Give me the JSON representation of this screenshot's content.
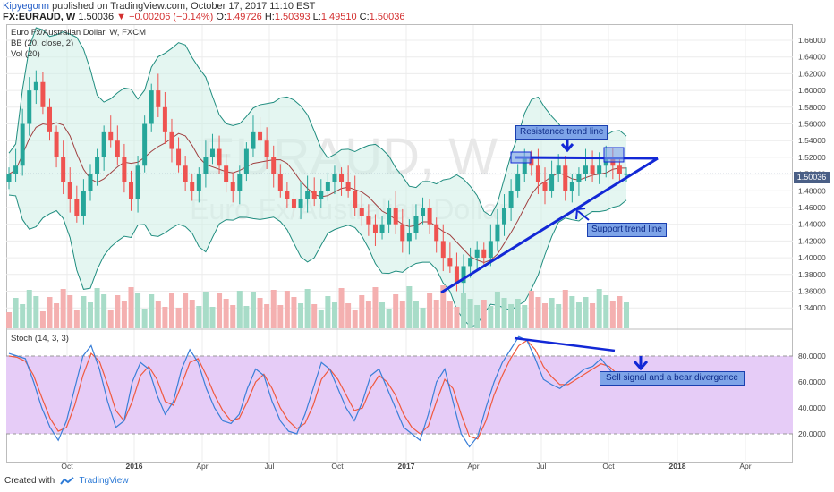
{
  "header": {
    "user": "Kipyegonn",
    "published": "published on TradingView.com, October 17, 2017 11:10 EST",
    "symbol": "FX:EURAUD, W",
    "last": "1.50036",
    "change": "−0.00206 (−0.14%)",
    "open_label": "O:",
    "open": "1.49726",
    "high_label": "H:",
    "high": "1.50393",
    "low_label": "L:",
    "low": "1.49510",
    "close_label": "C:",
    "close": "1.50036"
  },
  "legend": {
    "title": "Euro Fx/Australian Dollar, W, FXCM",
    "bb": "BB (20, close, 2)",
    "vol": "Vol (20)",
    "stoch": "Stoch (14, 3, 3)"
  },
  "watermark": {
    "symbol": "EURAUD, W",
    "name": "Euro Fx/Australian Dollar"
  },
  "price_axis": {
    "ticks": [
      "1.66000",
      "1.64000",
      "1.62000",
      "1.60000",
      "1.58000",
      "1.56000",
      "1.54000",
      "1.52000",
      "1.50000",
      "1.48000",
      "1.46000",
      "1.44000",
      "1.42000",
      "1.40000",
      "1.38000",
      "1.36000",
      "1.34000"
    ],
    "current": "1.50036"
  },
  "stoch_axis": {
    "ticks": [
      "80.0000",
      "60.0000",
      "40.0000",
      "20.0000"
    ]
  },
  "time_axis": {
    "labels": [
      "Oct",
      "2016",
      "Apr",
      "Jul",
      "Oct",
      "2017",
      "Apr",
      "Jul",
      "Oct",
      "2018",
      "Apr"
    ]
  },
  "annotations": {
    "resistance": "Resistance trend line",
    "support": "Support trend line",
    "sell": "Sell signal and a bear divergence"
  },
  "footer": {
    "created": "Created with",
    "brand": "TradingView"
  },
  "colors": {
    "up": "#26a69a",
    "down": "#ef5350",
    "bb_fill": "#cdeee6",
    "bb_line": "#1e8c7e",
    "basis": "#a04040",
    "stoch_fill": "#e6ccf7",
    "trend": "#1228d6"
  },
  "chart_data": {
    "type": "candlestick",
    "title": "Euro Fx/Australian Dollar, W, FXCM",
    "ylim": [
      1.33,
      1.67
    ],
    "close_series": [
      1.5,
      1.51,
      1.56,
      1.6,
      1.61,
      1.58,
      1.55,
      1.52,
      1.49,
      1.47,
      1.45,
      1.48,
      1.5,
      1.52,
      1.55,
      1.54,
      1.52,
      1.49,
      1.47,
      1.51,
      1.56,
      1.6,
      1.58,
      1.55,
      1.53,
      1.51,
      1.49,
      1.48,
      1.5,
      1.52,
      1.53,
      1.51,
      1.49,
      1.48,
      1.5,
      1.53,
      1.55,
      1.54,
      1.52,
      1.5,
      1.48,
      1.47,
      1.46,
      1.47,
      1.48,
      1.47,
      1.48,
      1.49,
      1.5,
      1.49,
      1.48,
      1.46,
      1.45,
      1.44,
      1.43,
      1.44,
      1.46,
      1.44,
      1.42,
      1.43,
      1.45,
      1.46,
      1.44,
      1.42,
      1.4,
      1.39,
      1.37,
      1.39,
      1.4,
      1.41,
      1.4,
      1.42,
      1.44,
      1.46,
      1.48,
      1.5,
      1.52,
      1.51,
      1.49,
      1.48,
      1.5,
      1.51,
      1.48,
      1.49,
      1.5,
      1.51,
      1.5,
      1.51,
      1.52,
      1.51,
      1.5,
      1.5
    ],
    "stoch_k": [
      82,
      80,
      78,
      60,
      40,
      25,
      15,
      30,
      55,
      80,
      88,
      70,
      45,
      25,
      30,
      60,
      75,
      70,
      50,
      35,
      45,
      70,
      85,
      75,
      55,
      40,
      30,
      28,
      35,
      55,
      70,
      65,
      45,
      30,
      22,
      20,
      35,
      55,
      75,
      70,
      55,
      40,
      30,
      45,
      65,
      70,
      55,
      40,
      25,
      20,
      15,
      35,
      60,
      70,
      45,
      20,
      10,
      18,
      40,
      60,
      75,
      85,
      95,
      92,
      78,
      62,
      58,
      55,
      60,
      65,
      70,
      72,
      78,
      70,
      62
    ],
    "stoch_d": [
      80,
      79,
      76,
      65,
      48,
      32,
      22,
      25,
      42,
      65,
      82,
      76,
      58,
      38,
      30,
      45,
      65,
      72,
      62,
      45,
      42,
      58,
      75,
      78,
      65,
      50,
      38,
      30,
      32,
      45,
      60,
      66,
      55,
      40,
      30,
      24,
      28,
      42,
      62,
      70,
      62,
      50,
      38,
      40,
      55,
      65,
      60,
      50,
      35,
      25,
      20,
      26,
      45,
      62,
      55,
      35,
      18,
      16,
      30,
      50,
      65,
      78,
      88,
      92,
      85,
      72,
      64,
      58,
      58,
      62,
      66,
      70,
      74,
      72,
      66
    ],
    "stoch_bands": [
      80,
      20
    ]
  }
}
